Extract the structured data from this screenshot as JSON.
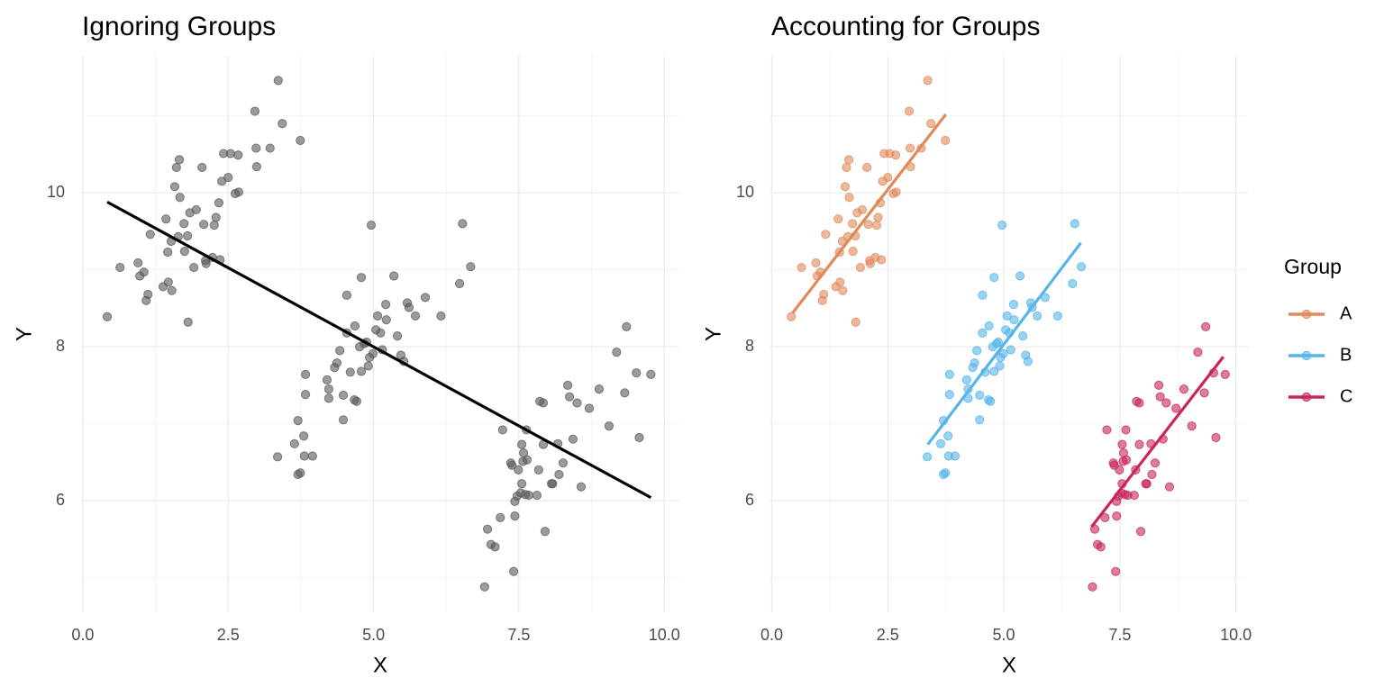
{
  "chart_data": [
    {
      "type": "scatter",
      "title": "Ignoring Groups",
      "xlabel": "X",
      "ylabel": "Y",
      "xlim": [
        -0.03,
        10.26
      ],
      "ylim": [
        4.55,
        11.78
      ],
      "xticks": [
        {
          "value": 0,
          "label": "0.0"
        },
        {
          "value": 2.5,
          "label": "2.5"
        },
        {
          "value": 5,
          "label": "5.0"
        },
        {
          "value": 7.5,
          "label": "7.5"
        },
        {
          "value": 10,
          "label": "10.0"
        }
      ],
      "yticks": [
        6,
        8,
        10
      ],
      "grid": true,
      "color": "#595959",
      "x": [
        0.42,
        0.64,
        0.95,
        0.98,
        1.05,
        1.09,
        1.12,
        1.16,
        1.38,
        1.43,
        1.46,
        1.47,
        1.52,
        1.53,
        1.58,
        1.61,
        1.66,
        1.64,
        1.67,
        1.74,
        1.75,
        1.8,
        1.81,
        1.84,
        1.91,
        1.95,
        2.05,
        2.08,
        2.11,
        2.12,
        2.23,
        2.29,
        2.26,
        2.34,
        2.36,
        2.39,
        2.42,
        2.5,
        2.54,
        2.62,
        2.67,
        2.68,
        2.96,
        2.99,
        2.98,
        3.22,
        3.36,
        3.43,
        3.74,
        3.35,
        3.64,
        3.7,
        3.7,
        3.74,
        3.8,
        3.81,
        3.83,
        3.83,
        3.95,
        4.2,
        4.23,
        4.23,
        4.33,
        4.37,
        4.42,
        4.48,
        4.48,
        4.54,
        4.54,
        4.6,
        4.67,
        4.68,
        4.71,
        4.76,
        4.79,
        4.79,
        4.84,
        4.88,
        4.91,
        4.93,
        4.96,
        4.99,
        5.04,
        5.07,
        5.12,
        5.15,
        5.21,
        5.22,
        5.35,
        5.41,
        5.47,
        5.52,
        5.58,
        5.61,
        5.72,
        5.89,
        6.16,
        6.48,
        6.53,
        6.67,
        6.91,
        6.96,
        7.02,
        7.09,
        7.18,
        7.22,
        7.36,
        7.38,
        7.41,
        7.43,
        7.43,
        7.47,
        7.49,
        7.53,
        7.55,
        7.55,
        7.57,
        7.58,
        7.61,
        7.63,
        7.64,
        7.67,
        7.81,
        7.84,
        7.86,
        7.92,
        7.92,
        7.95,
        8.06,
        8.08,
        8.17,
        8.19,
        8.26,
        8.34,
        8.37,
        8.43,
        8.5,
        8.57,
        8.71,
        8.88,
        9.05,
        9.18,
        9.32,
        9.35,
        9.52,
        9.57,
        9.77
      ],
      "values": [
        8.39,
        9.03,
        9.09,
        8.92,
        8.97,
        8.6,
        8.68,
        9.46,
        8.78,
        9.66,
        9.23,
        8.84,
        9.37,
        8.73,
        10.08,
        10.33,
        10.43,
        9.43,
        9.94,
        9.6,
        9.24,
        9.44,
        8.32,
        9.74,
        9.03,
        9.78,
        10.33,
        9.59,
        9.12,
        9.08,
        9.16,
        9.68,
        9.58,
        9.87,
        9.13,
        10.15,
        10.51,
        10.2,
        10.51,
        9.99,
        10.49,
        10.01,
        11.06,
        10.34,
        10.58,
        10.58,
        11.46,
        10.9,
        10.68,
        6.57,
        6.74,
        7.04,
        6.34,
        6.36,
        6.84,
        6.58,
        7.38,
        7.64,
        6.58,
        7.57,
        7.33,
        7.45,
        7.73,
        7.79,
        7.95,
        7.05,
        7.37,
        8.67,
        8.18,
        7.67,
        7.31,
        8.27,
        7.29,
        8.0,
        8.9,
        7.68,
        8.04,
        8.06,
        7.75,
        7.86,
        9.58,
        7.91,
        8.22,
        8.4,
        8.18,
        7.96,
        8.55,
        8.35,
        8.92,
        8.14,
        7.89,
        7.81,
        8.57,
        8.51,
        8.4,
        8.64,
        8.4,
        8.82,
        9.6,
        9.04,
        4.88,
        5.63,
        5.43,
        5.4,
        5.78,
        6.92,
        6.49,
        6.46,
        5.08,
        5.99,
        5.8,
        6.06,
        6.4,
        6.1,
        6.73,
        6.22,
        6.51,
        6.62,
        6.08,
        6.92,
        6.53,
        6.07,
        6.07,
        6.4,
        7.29,
        7.27,
        6.73,
        5.6,
        6.22,
        6.22,
        6.74,
        6.34,
        6.49,
        7.5,
        7.35,
        6.8,
        7.27,
        6.18,
        7.2,
        7.45,
        6.97,
        7.93,
        7.4,
        8.26,
        7.66,
        6.82,
        7.64
      ],
      "fit": {
        "x": [
          0.42,
          9.77
        ],
        "values": [
          9.88,
          6.04
        ],
        "color": "#000000"
      }
    },
    {
      "type": "scatter",
      "title": "Accounting for Groups",
      "xlabel": "X",
      "ylabel": "Y",
      "xlim": [
        -0.03,
        10.26
      ],
      "ylim": [
        4.55,
        11.78
      ],
      "xticks": [
        {
          "value": 0,
          "label": "0.0"
        },
        {
          "value": 2.5,
          "label": "2.5"
        },
        {
          "value": 5,
          "label": "5.0"
        },
        {
          "value": 7.5,
          "label": "7.5"
        },
        {
          "value": 10,
          "label": "10.0"
        }
      ],
      "yticks": [
        6,
        8,
        10
      ],
      "grid": true,
      "legend_title": "Group",
      "legend": "right",
      "series": [
        {
          "name": "A",
          "color": "#E0895A",
          "x": [
            0.42,
            0.64,
            0.95,
            0.98,
            1.05,
            1.09,
            1.12,
            1.16,
            1.38,
            1.43,
            1.46,
            1.47,
            1.52,
            1.53,
            1.58,
            1.61,
            1.66,
            1.64,
            1.67,
            1.74,
            1.75,
            1.8,
            1.81,
            1.84,
            1.91,
            1.95,
            2.05,
            2.08,
            2.11,
            2.12,
            2.23,
            2.29,
            2.26,
            2.34,
            2.36,
            2.39,
            2.42,
            2.5,
            2.54,
            2.62,
            2.67,
            2.68,
            2.96,
            2.99,
            2.98,
            3.22,
            3.36,
            3.43,
            3.74
          ],
          "values": [
            8.39,
            9.03,
            9.09,
            8.92,
            8.97,
            8.6,
            8.68,
            9.46,
            8.78,
            9.66,
            9.23,
            8.84,
            9.37,
            8.73,
            10.08,
            10.33,
            10.43,
            9.43,
            9.94,
            9.6,
            9.24,
            9.44,
            8.32,
            9.74,
            9.03,
            9.78,
            10.33,
            9.59,
            9.12,
            9.08,
            9.16,
            9.68,
            9.58,
            9.87,
            9.13,
            10.15,
            10.51,
            10.2,
            10.51,
            9.99,
            10.49,
            10.01,
            11.06,
            10.34,
            10.58,
            10.58,
            11.46,
            10.9,
            10.68
          ],
          "fit": {
            "x": [
              0.45,
              3.75
            ],
            "values": [
              8.44,
              11.02
            ]
          }
        },
        {
          "name": "B",
          "color": "#56B4E9",
          "x": [
            3.35,
            3.64,
            3.7,
            3.7,
            3.74,
            3.8,
            3.81,
            3.83,
            3.83,
            3.95,
            4.2,
            4.23,
            4.23,
            4.33,
            4.37,
            4.42,
            4.48,
            4.48,
            4.54,
            4.54,
            4.6,
            4.67,
            4.68,
            4.71,
            4.76,
            4.79,
            4.79,
            4.84,
            4.88,
            4.91,
            4.93,
            4.96,
            4.99,
            5.04,
            5.07,
            5.12,
            5.15,
            5.21,
            5.22,
            5.35,
            5.41,
            5.47,
            5.52,
            5.58,
            5.61,
            5.72,
            5.89,
            6.16,
            6.48,
            6.53,
            6.67
          ],
          "values": [
            6.57,
            6.74,
            7.04,
            6.34,
            6.36,
            6.84,
            6.58,
            7.38,
            7.64,
            6.58,
            7.57,
            7.33,
            7.45,
            7.73,
            7.79,
            7.95,
            7.05,
            7.37,
            8.67,
            8.18,
            7.67,
            7.31,
            8.27,
            7.29,
            8.0,
            8.9,
            7.68,
            8.04,
            8.06,
            7.75,
            7.86,
            9.58,
            7.91,
            8.22,
            8.4,
            8.18,
            7.96,
            8.55,
            8.35,
            8.92,
            8.14,
            7.89,
            7.81,
            8.57,
            8.51,
            8.4,
            8.64,
            8.4,
            8.82,
            9.6,
            9.04
          ],
          "fit": {
            "x": [
              3.36,
              6.66
            ],
            "values": [
              6.73,
              9.35
            ]
          }
        },
        {
          "name": "C",
          "color": "#C8255E",
          "x": [
            6.91,
            6.96,
            7.02,
            7.09,
            7.18,
            7.22,
            7.36,
            7.38,
            7.41,
            7.43,
            7.43,
            7.47,
            7.49,
            7.53,
            7.55,
            7.55,
            7.57,
            7.58,
            7.61,
            7.63,
            7.64,
            7.67,
            7.81,
            7.84,
            7.86,
            7.92,
            7.92,
            7.95,
            8.06,
            8.08,
            8.17,
            8.19,
            8.26,
            8.34,
            8.37,
            8.43,
            8.5,
            8.57,
            8.71,
            8.88,
            9.05,
            9.18,
            9.32,
            9.35,
            9.52,
            9.57,
            9.77
          ],
          "values": [
            4.88,
            5.63,
            5.43,
            5.4,
            5.78,
            6.92,
            6.49,
            6.46,
            5.08,
            5.99,
            5.8,
            6.06,
            6.4,
            6.1,
            6.73,
            6.22,
            6.51,
            6.62,
            6.08,
            6.92,
            6.53,
            6.07,
            6.07,
            6.4,
            7.29,
            7.27,
            6.73,
            5.6,
            6.22,
            6.22,
            6.74,
            6.34,
            6.49,
            7.5,
            7.35,
            6.8,
            7.27,
            6.18,
            7.2,
            7.45,
            6.97,
            7.93,
            7.4,
            8.26,
            7.66,
            6.82,
            7.64
          ],
          "fit": {
            "x": [
              6.89,
              9.73
            ],
            "values": [
              5.66,
              7.87
            ]
          }
        }
      ]
    }
  ]
}
